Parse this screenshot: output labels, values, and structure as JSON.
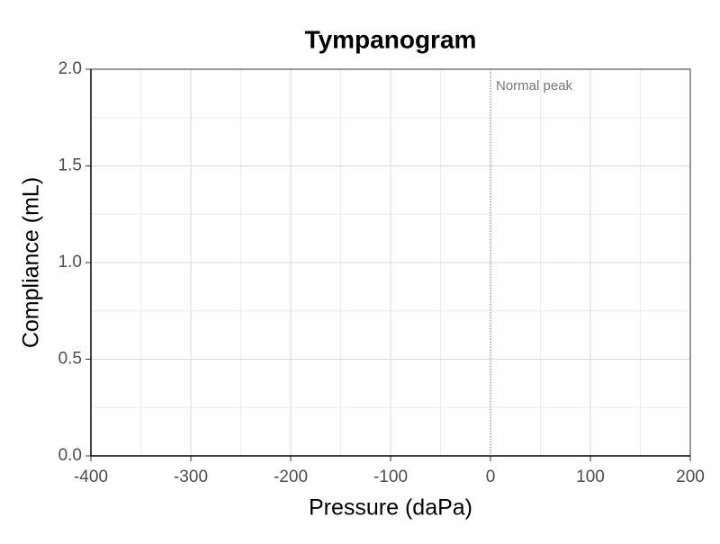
{
  "chart_data": {
    "type": "line",
    "title": "Tympanogram",
    "xlabel": "Pressure (daPa)",
    "ylabel": "Compliance (mL)",
    "series": [],
    "xlim": [
      -400,
      200
    ],
    "xticks": [
      -400,
      -300,
      -200,
      -100,
      0,
      100,
      200
    ],
    "ylim": [
      0,
      2
    ],
    "yticks": [
      {
        "value": 0,
        "label": "0.0"
      },
      0.5,
      {
        "value": 1,
        "label": "1.0"
      },
      1.5,
      {
        "value": 2,
        "label": "2.0"
      }
    ],
    "grid": true,
    "reference_line": {
      "x": 0,
      "label": "Normal peak",
      "color": "#4a6fa5",
      "style": "dotted"
    }
  }
}
